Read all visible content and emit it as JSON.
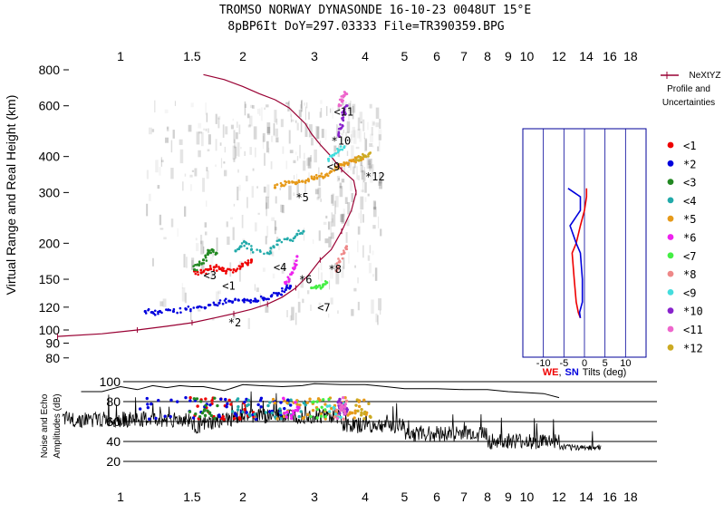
{
  "header": {
    "line1": "TROMSO NORWAY   DYNASONDE 16-10-23 0048UT 15°E",
    "line2": "8pBP6It DoY=297.03333 File=TR390359.BPG"
  },
  "chart_data": [
    {
      "type": "scatter",
      "panel": "ionogram",
      "ylabel": "Virtual Range and Real Height (km)",
      "xscale": "log",
      "yscale": "log",
      "xlim": [
        0.7,
        20
      ],
      "ylim": [
        80,
        800
      ],
      "xticks": [
        "1",
        "1.5",
        "2",
        "3",
        "4",
        "5",
        "6",
        "7",
        "8",
        "9",
        "10",
        "12",
        "14",
        "16",
        "18"
      ],
      "xtick_values": [
        1,
        1.5,
        2,
        3,
        4,
        5,
        6,
        7,
        8,
        9,
        10,
        12,
        14,
        16,
        18
      ],
      "yticks": [
        80,
        90,
        100,
        120,
        150,
        200,
        300,
        400,
        600,
        800
      ],
      "series": [
        {
          "name": "<1",
          "color": "#ee0000",
          "x": [
            1.52,
            1.58,
            1.64,
            1.7,
            1.76,
            1.82,
            1.9,
            1.98,
            2.05,
            2.1
          ],
          "y": [
            160,
            158,
            162,
            165,
            163,
            160,
            162,
            166,
            170,
            175
          ]
        },
        {
          "name": "*2",
          "color": "#0000dd",
          "x": [
            1.15,
            1.2,
            1.25,
            1.35,
            1.45,
            1.55,
            1.65,
            1.75,
            1.85,
            1.95,
            2.05,
            2.15,
            2.25,
            2.35,
            2.45,
            2.55,
            2.62
          ],
          "y": [
            116,
            115,
            116,
            116,
            118,
            120,
            122,
            124,
            126,
            127,
            127,
            127,
            129,
            131,
            134,
            138,
            142
          ]
        },
        {
          "name": "<3",
          "color": "#228822",
          "x": [
            1.52,
            1.56,
            1.6,
            1.64,
            1.68,
            1.72
          ],
          "y": [
            162,
            168,
            175,
            183,
            190,
            185
          ]
        },
        {
          "name": "<4",
          "color": "#22aaaa",
          "x": [
            1.92,
            1.98,
            2.04,
            2.1,
            2.3,
            2.38,
            2.46,
            2.62,
            2.72,
            2.82
          ],
          "y": [
            188,
            195,
            200,
            190,
            185,
            195,
            205,
            205,
            215,
            220
          ]
        },
        {
          "name": "*5",
          "color": "#e69a1a",
          "x": [
            2.4,
            2.5,
            2.6,
            2.7,
            2.8,
            2.9,
            3.0,
            3.1,
            3.2,
            3.3,
            3.4,
            3.5,
            3.6,
            3.7,
            3.8,
            3.9,
            4.0
          ],
          "y": [
            312,
            318,
            325,
            322,
            328,
            332,
            338,
            342,
            345,
            355,
            368,
            374,
            380,
            386,
            392,
            398,
            402
          ]
        },
        {
          "name": "*6",
          "color": "#ee22ee",
          "x": [
            2.55,
            2.6,
            2.65,
            2.7,
            2.72
          ],
          "y": [
            145,
            150,
            158,
            168,
            180
          ]
        },
        {
          "name": "<7",
          "color": "#44ee44",
          "x": [
            2.95,
            3.05,
            3.15,
            3.22
          ],
          "y": [
            140,
            141,
            143,
            146
          ]
        },
        {
          "name": "*8",
          "color": "#ee8888",
          "x": [
            3.4,
            3.45,
            3.55,
            3.6
          ],
          "y": [
            160,
            172,
            185,
            195
          ]
        },
        {
          "name": "<9",
          "color": "#44dddd",
          "x": [
            3.25,
            3.35,
            3.45,
            3.55
          ],
          "y": [
            392,
            405,
            420,
            430
          ]
        },
        {
          "name": "*10",
          "color": "#8822cc",
          "x": [
            3.45,
            3.48,
            3.52,
            3.56,
            3.6
          ],
          "y": [
            470,
            500,
            540,
            570,
            600
          ]
        },
        {
          "name": "<11",
          "color": "#ee66cc",
          "x": [
            3.45,
            3.5,
            3.55,
            3.6
          ],
          "y": [
            600,
            630,
            650,
            660
          ]
        },
        {
          "name": "*12",
          "color": "#ccaa22",
          "x": [
            3.8,
            3.9,
            4.0,
            4.1
          ],
          "y": [
            390,
            395,
            400,
            410
          ]
        }
      ],
      "annotations": [
        {
          "text": "<1",
          "x": 1.78,
          "y": 138
        },
        {
          "text": "*2",
          "x": 1.84,
          "y": 103
        },
        {
          "text": "<3",
          "x": 1.6,
          "y": 150
        },
        {
          "text": "<4",
          "x": 2.38,
          "y": 160
        },
        {
          "text": "*5",
          "x": 2.7,
          "y": 280
        },
        {
          "text": "*6",
          "x": 2.75,
          "y": 145
        },
        {
          "text": "<7",
          "x": 3.05,
          "y": 116
        },
        {
          "text": "*8",
          "x": 3.25,
          "y": 158
        },
        {
          "text": "<9",
          "x": 3.22,
          "y": 358
        },
        {
          "text": "*10",
          "x": 3.3,
          "y": 440
        },
        {
          "text": "<11",
          "x": 3.35,
          "y": 555
        },
        {
          "text": "*12",
          "x": 4.0,
          "y": 330
        }
      ],
      "profile": {
        "name": "NeXtYZ Profile and Uncertainties",
        "color": "#990033",
        "x": [
          0.7,
          0.9,
          1.1,
          1.3,
          1.5,
          1.7,
          1.9,
          2.1,
          2.3,
          2.5,
          2.7,
          2.9,
          3.1,
          3.3,
          3.5,
          3.7,
          3.8,
          3.75,
          3.5,
          3.3,
          3.1,
          2.95,
          2.85,
          2.6,
          2.4,
          2.2,
          2.0,
          1.8,
          1.6
        ],
        "y": [
          95,
          97,
          100,
          103,
          106,
          110,
          114,
          118,
          123,
          130,
          140,
          155,
          175,
          190,
          220,
          260,
          300,
          330,
          360,
          400,
          440,
          480,
          520,
          590,
          630,
          660,
          700,
          740,
          770
        ]
      }
    },
    {
      "type": "line",
      "panel": "tilts",
      "xlabel": "WE, SN Tilts (deg)",
      "xlabel_we": "WE",
      "xlabel_sep": ",",
      "xlabel_sn": "SN",
      "xlabel_rest": "Tilts (deg)",
      "xlim": [
        -15,
        15
      ],
      "xticks": [
        -10,
        -5,
        0,
        5,
        10
      ],
      "series": [
        {
          "name": "WE",
          "color": "#ee0000",
          "x": [
            -1,
            -1.5,
            -2,
            -2.5,
            -3,
            -2,
            -1,
            0,
            0.5,
            0.5
          ],
          "y": [
            110,
            115,
            125,
            150,
            185,
            200,
            230,
            260,
            290,
            310
          ]
        },
        {
          "name": "SN",
          "color": "#0000dd",
          "x": [
            -1,
            -1.2,
            -0.5,
            -0.5,
            -1,
            -2,
            -3.5,
            -1,
            -1,
            -4
          ],
          "y": [
            110,
            115,
            125,
            150,
            185,
            200,
            230,
            260,
            290,
            310
          ]
        }
      ]
    },
    {
      "type": "line",
      "panel": "amplitudes",
      "ylabel": "Noise and Echo Amplitudes (dB)",
      "xscale": "log",
      "xlim": [
        0.7,
        20
      ],
      "ylim": [
        5,
        105
      ],
      "yticks": [
        20,
        40,
        60,
        80,
        100
      ]
    }
  ],
  "legend": {
    "title": "NeXtYZ Profile and Uncertainties",
    "title_lines": [
      "NeXtYZ",
      "Profile and",
      "Uncertainties"
    ],
    "items": [
      {
        "label": "<1",
        "color": "#ee0000"
      },
      {
        "label": "*2",
        "color": "#0000dd"
      },
      {
        "label": "<3",
        "color": "#228822"
      },
      {
        "label": "<4",
        "color": "#22aaaa"
      },
      {
        "label": "*5",
        "color": "#e69a1a"
      },
      {
        "label": "*6",
        "color": "#ee22ee"
      },
      {
        "label": "<7",
        "color": "#44ee44"
      },
      {
        "label": "*8",
        "color": "#ee8888"
      },
      {
        "label": "<9",
        "color": "#44dddd"
      },
      {
        "label": "*10",
        "color": "#8822cc"
      },
      {
        "label": "<11",
        "color": "#ee66cc"
      },
      {
        "label": "*12",
        "color": "#ccaa22"
      }
    ]
  },
  "amp_labels": {
    "line1": "Noise and Echo",
    "line2": "Amplitudes (dB)"
  },
  "colors": {
    "profile": "#990033",
    "we": "#ee0000",
    "sn": "#0000dd",
    "tilt_frame": "#000099"
  }
}
